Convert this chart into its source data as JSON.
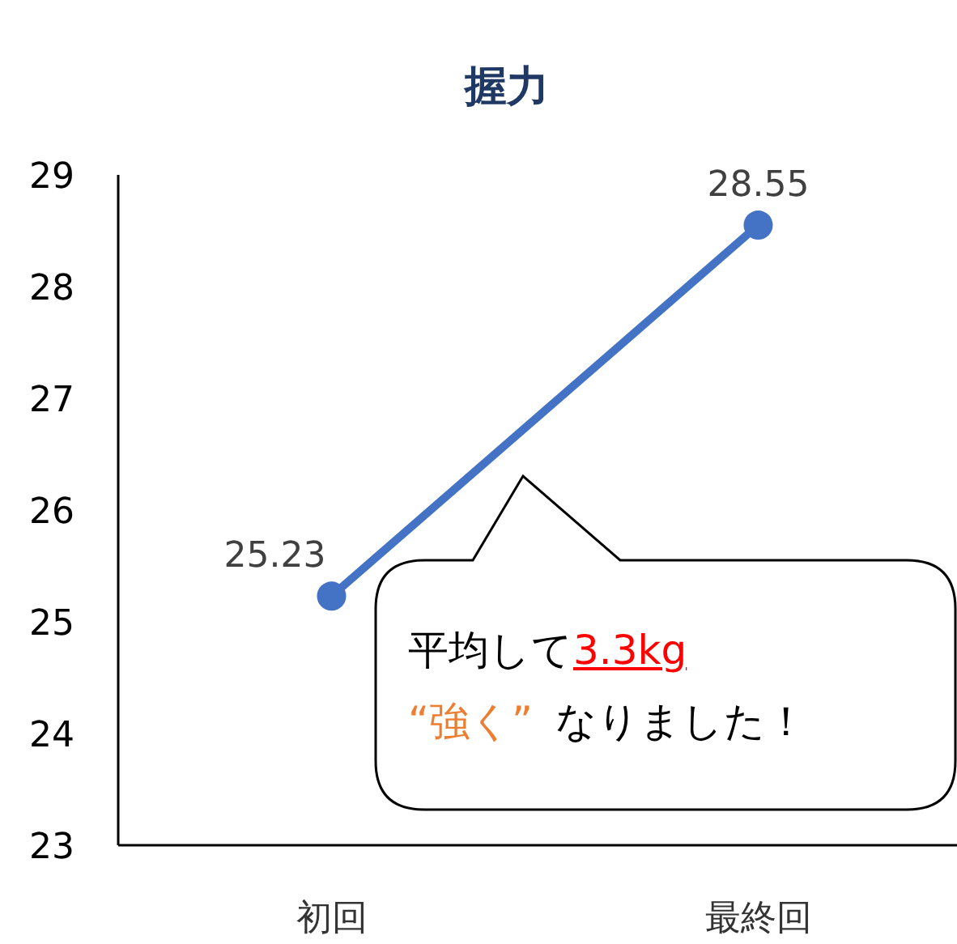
{
  "chart_data": {
    "type": "line",
    "title": "握力",
    "categories": [
      "初回",
      "最終回"
    ],
    "series": [
      {
        "color": "#4472c4",
        "values": [
          25.23,
          28.55
        ]
      }
    ],
    "ylim": [
      23,
      29
    ],
    "yticks": [
      23,
      24,
      25,
      26,
      27,
      28,
      29
    ],
    "marker": "circle",
    "data_labels": true,
    "grid": false,
    "annotations": [
      "平均して",
      "3.3kg",
      "“強く”",
      "なりました！"
    ]
  }
}
